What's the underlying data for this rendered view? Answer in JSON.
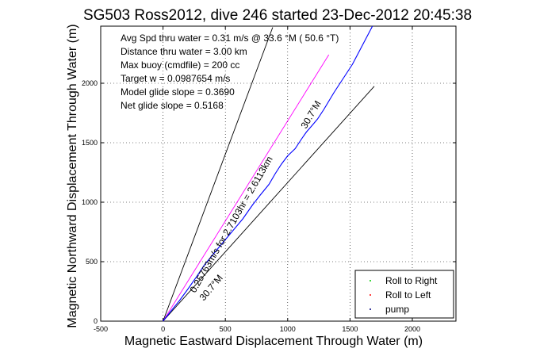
{
  "chart_data": {
    "type": "line",
    "title": "SG503 Ross2012, dive 246 started 23-Dec-2012 20:45:38",
    "xlabel": "Magnetic Eastward Displacement Through Water (m)",
    "ylabel": "Magnetic Northward Displacement Through Water (m)",
    "xlim": [
      -500,
      2350
    ],
    "ylim": [
      0,
      2480
    ],
    "xticks": [
      -500,
      0,
      500,
      1000,
      1500,
      2000
    ],
    "yticks": [
      0,
      500,
      1000,
      1500,
      2000
    ],
    "grid": true,
    "legend_position": "bottom-right",
    "info_lines": [
      "Avg Spd thru water =  0.31 m/s @  33.6   °M ( 50.6 °T)",
      "Distance thru water =  3.00 km",
      "Max buoy (cmdfile) = 200 cc",
      "Target w = 0.0987654 m/s",
      "Model glide slope = 0.3690",
      "Net glide slope = 0.5168"
    ],
    "annotations": {
      "along_track": "0.25763m/s for 2.7103hr = 2.6113km",
      "heading_upper": "30.7°M",
      "heading_lower": "30.7°M"
    },
    "series": [
      {
        "name": "",
        "color": "#000000",
        "x": [
          0,
          880
        ],
        "y": [
          0,
          2470
        ]
      },
      {
        "name": "",
        "color": "#000000",
        "x": [
          0,
          1695
        ],
        "y": [
          0,
          1975
        ]
      },
      {
        "name": "",
        "color": "#ff00ff",
        "x": [
          0,
          1330
        ],
        "y": [
          0,
          2240
        ]
      },
      {
        "name": "",
        "color": "#0000ff",
        "x": [
          0,
          60,
          130,
          200,
          260,
          330,
          400,
          480,
          560,
          640,
          720,
          780,
          850,
          900,
          950,
          1000,
          1060,
          1110,
          1150,
          1200,
          1240,
          1290,
          1330,
          1370,
          1420,
          1470,
          1520,
          1560,
          1600,
          1640,
          1680
        ],
        "y": [
          0,
          80,
          170,
          270,
          360,
          470,
          560,
          660,
          760,
          860,
          980,
          1060,
          1150,
          1240,
          1320,
          1390,
          1450,
          1530,
          1590,
          1650,
          1700,
          1780,
          1850,
          1920,
          2000,
          2080,
          2160,
          2240,
          2320,
          2400,
          2480
        ]
      }
    ],
    "legend": [
      {
        "label": "Roll to Right",
        "color": "#00cc00"
      },
      {
        "label": "Roll to Left",
        "color": "#ff0000"
      },
      {
        "label": "pump",
        "color": "#000080"
      }
    ]
  }
}
